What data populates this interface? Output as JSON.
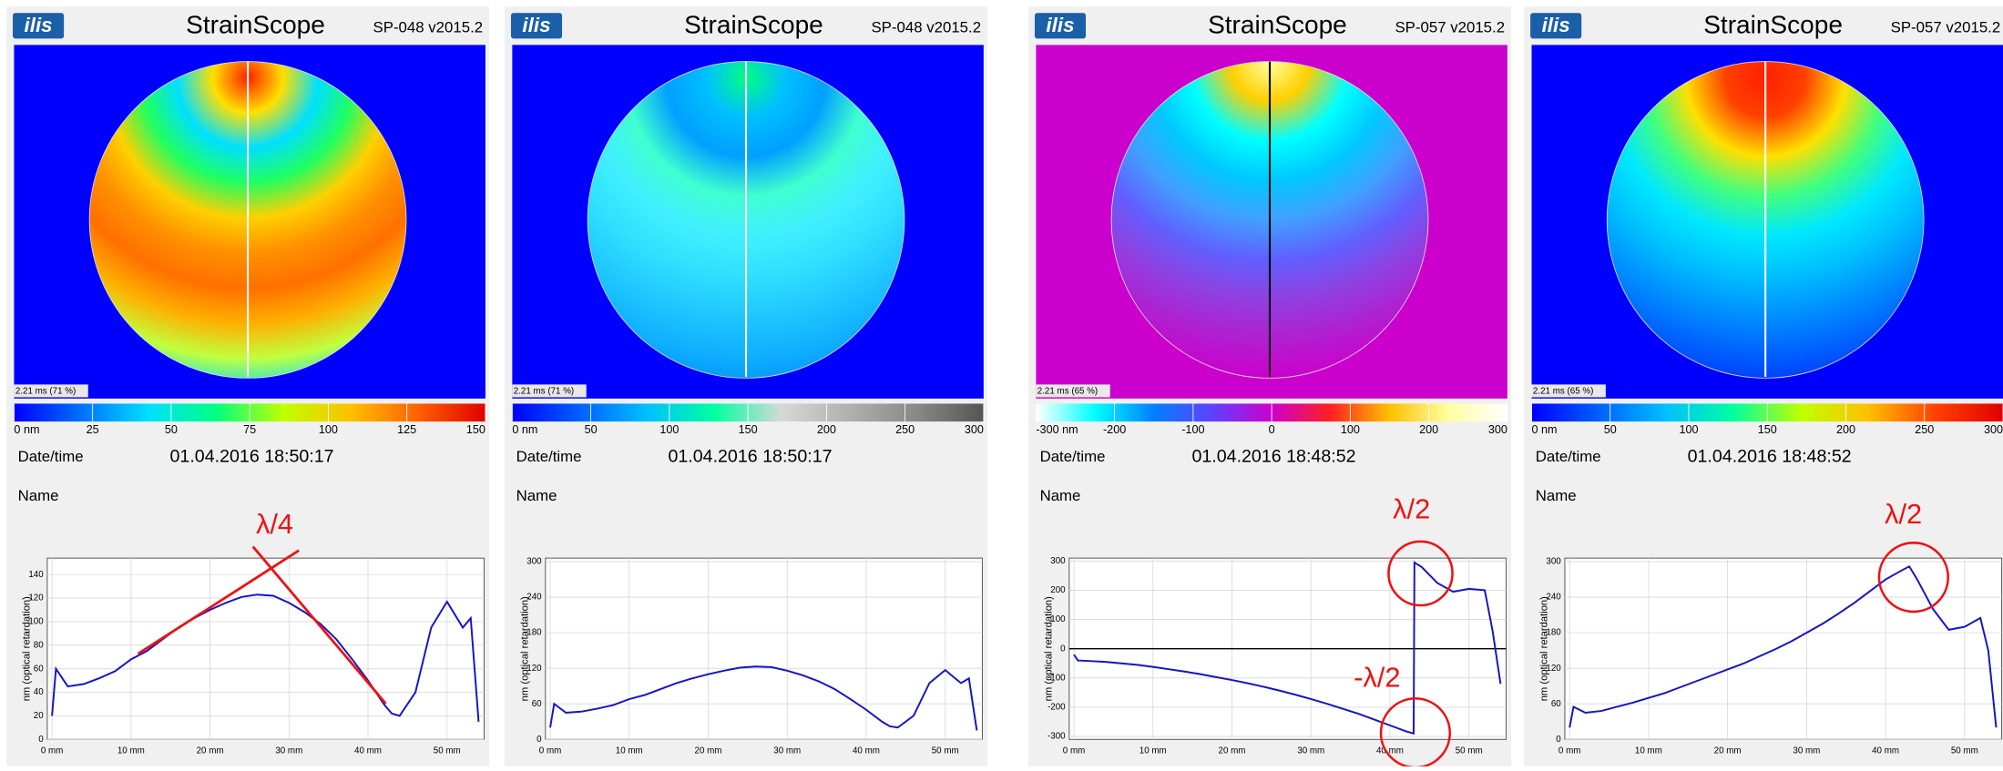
{
  "chart_data": [
    {
      "type": "line",
      "logo": "ilis",
      "app_title": "StrainScope",
      "version": "SP-048 v2015.2",
      "image_label": "2.21 ms (71 %)",
      "colorbar": {
        "lim": [
          0,
          150
        ],
        "ticks": [
          {
            "value": 0,
            "label": "0 nm"
          },
          25,
          50,
          75,
          100,
          125,
          150
        ],
        "colors": [
          "#0000ff",
          "#0070ff",
          "#00e0ff",
          "#00ff80",
          "#c0ff00",
          "#ffc000",
          "#ff6000",
          "#e00000"
        ]
      },
      "date_label": "Date/time",
      "date_value": "01.04.2016 18:50:17",
      "name_label": "Name",
      "ylabel": "nm (optical retardation)",
      "xlim": [
        -0.6,
        54.7
      ],
      "xticks": [
        {
          "value": 0,
          "label": "0 mm"
        },
        {
          "value": 10,
          "label": "10 mm"
        },
        {
          "value": 20,
          "label": "20 mm"
        },
        {
          "value": 30,
          "label": "30 mm"
        },
        {
          "value": 40,
          "label": "40 mm"
        },
        {
          "value": 50,
          "label": "50 mm"
        }
      ],
      "ylim": [
        0,
        154
      ],
      "yticks": [
        0,
        20,
        40,
        60,
        80,
        100,
        120,
        140
      ],
      "grid": true,
      "zero_line": false,
      "x": [
        0,
        0.5,
        2,
        4,
        6,
        8,
        10,
        12,
        14,
        16,
        18,
        20,
        22,
        24,
        26,
        28,
        30,
        32,
        34,
        36,
        38,
        40,
        42,
        43,
        44,
        46,
        48,
        50,
        52,
        53,
        54
      ],
      "series": [
        {
          "color": "#1414c8",
          "values": [
            20,
            60,
            45,
            47,
            52,
            58,
            68,
            75,
            85,
            95,
            103,
            110,
            116,
            121,
            123,
            122,
            116,
            108,
            98,
            85,
            68,
            50,
            30,
            22,
            20,
            40,
            95,
            117,
            95,
            103,
            15
          ]
        }
      ],
      "annotations": [
        "λ/4"
      ]
    },
    {
      "type": "line",
      "logo": "ilis",
      "app_title": "StrainScope",
      "version": "SP-048 v2015.2",
      "image_label": "2.21 ms (71 %)",
      "colorbar": {
        "lim": [
          0,
          300
        ],
        "ticks": [
          {
            "value": 0,
            "label": "0 nm"
          },
          50,
          100,
          150,
          200,
          250,
          300
        ],
        "colors": [
          "#0000ff",
          "#0060ff",
          "#00c0ff",
          "#00ffa0",
          "#d8d8d8",
          "#b0b0b0",
          "#888888",
          "#555555"
        ]
      },
      "date_label": "Date/time",
      "date_value": "01.04.2016 18:50:17",
      "name_label": "Name",
      "ylabel": "nm (optical retardation)",
      "xlim": [
        -0.6,
        54.7
      ],
      "xticks": [
        {
          "value": 0,
          "label": "0 mm"
        },
        {
          "value": 10,
          "label": "10 mm"
        },
        {
          "value": 20,
          "label": "20 mm"
        },
        {
          "value": 30,
          "label": "30 mm"
        },
        {
          "value": 40,
          "label": "40 mm"
        },
        {
          "value": 50,
          "label": "50 mm"
        }
      ],
      "ylim": [
        0,
        306
      ],
      "yticks": [
        0,
        60,
        120,
        180,
        240,
        300
      ],
      "grid": true,
      "zero_line": false,
      "x": [
        0,
        0.5,
        2,
        4,
        6,
        8,
        10,
        12,
        14,
        16,
        18,
        20,
        22,
        24,
        26,
        28,
        30,
        32,
        34,
        36,
        38,
        40,
        42,
        43,
        44,
        46,
        48,
        50,
        52,
        53,
        54
      ],
      "series": [
        {
          "color": "#1414c8",
          "values": [
            20,
            60,
            45,
            47,
            52,
            58,
            68,
            75,
            85,
            95,
            103,
            110,
            116,
            121,
            123,
            122,
            116,
            108,
            98,
            85,
            68,
            50,
            30,
            22,
            20,
            40,
            95,
            117,
            95,
            103,
            15
          ]
        }
      ],
      "annotations": []
    },
    {
      "type": "line",
      "logo": "ilis",
      "app_title": "StrainScope",
      "version": "SP-057 v2015.2",
      "image_label": "2.21 ms (65 %)",
      "colorbar": {
        "lim": [
          -300,
          300
        ],
        "ticks": [
          {
            "value": -300,
            "label": "-300 nm"
          },
          -200,
          -100,
          0,
          100,
          200,
          300
        ],
        "colors": [
          "#ffffff",
          "#00ffff",
          "#0080ff",
          "#6040ff",
          "#cc00cc",
          "#ff2020",
          "#ffc000",
          "#ffffa0",
          "#ffffff"
        ]
      },
      "date_label": "Date/time",
      "date_value": "01.04.2016 18:48:52",
      "name_label": "Name",
      "ylabel": "nm (optical retardation)",
      "xlim": [
        -0.6,
        54.7
      ],
      "xticks": [
        {
          "value": 0,
          "label": "0 mm"
        },
        {
          "value": 10,
          "label": "10 mm"
        },
        {
          "value": 20,
          "label": "20 mm"
        },
        {
          "value": 30,
          "label": "30 mm"
        },
        {
          "value": 40,
          "label": "40 mm"
        },
        {
          "value": 50,
          "label": "50 mm"
        }
      ],
      "ylim": [
        -310,
        310
      ],
      "yticks": [
        -300,
        -200,
        -100,
        0,
        100,
        200,
        300
      ],
      "grid": true,
      "zero_line": true,
      "x": [
        0,
        0.5,
        2,
        4,
        6,
        8,
        10,
        12,
        14,
        16,
        18,
        20,
        22,
        24,
        26,
        28,
        30,
        32,
        34,
        36,
        38,
        40,
        42,
        43,
        43.1,
        44,
        46,
        48,
        50,
        52,
        53,
        54
      ],
      "series": [
        {
          "color": "#1414c8",
          "values": [
            -20,
            -40,
            -42,
            -45,
            -50,
            -55,
            -62,
            -70,
            -78,
            -87,
            -97,
            -107,
            -118,
            -130,
            -143,
            -157,
            -172,
            -188,
            -205,
            -222,
            -242,
            -262,
            -282,
            -290,
            295,
            280,
            225,
            195,
            205,
            200,
            60,
            -120
          ]
        }
      ],
      "annotations": [
        "λ/2",
        "-λ/2"
      ]
    },
    {
      "type": "line",
      "logo": "ilis",
      "app_title": "StrainScope",
      "version": "SP-057 v2015.2",
      "image_label": "2.21 ms (65 %)",
      "colorbar": {
        "lim": [
          0,
          300
        ],
        "ticks": [
          {
            "value": 0,
            "label": "0 nm"
          },
          50,
          100,
          150,
          200,
          250,
          300
        ],
        "colors": [
          "#0000ff",
          "#0060ff",
          "#00c0ff",
          "#00ffa0",
          "#c0ff00",
          "#ffc000",
          "#ff4000",
          "#e00000"
        ]
      },
      "date_label": "Date/time",
      "date_value": "01.04.2016 18:48:52",
      "name_label": "Name",
      "ylabel": "nm (optical retardation)",
      "xlim": [
        -0.6,
        54.7
      ],
      "xticks": [
        {
          "value": 0,
          "label": "0 mm"
        },
        {
          "value": 10,
          "label": "10 mm"
        },
        {
          "value": 20,
          "label": "20 mm"
        },
        {
          "value": 30,
          "label": "30 mm"
        },
        {
          "value": 40,
          "label": "40 mm"
        },
        {
          "value": 50,
          "label": "50 mm"
        }
      ],
      "ylim": [
        0,
        306
      ],
      "yticks": [
        0,
        60,
        120,
        180,
        240,
        300
      ],
      "grid": true,
      "zero_line": false,
      "x": [
        0,
        0.5,
        2,
        4,
        6,
        8,
        10,
        12,
        14,
        16,
        18,
        20,
        22,
        24,
        26,
        28,
        30,
        32,
        34,
        36,
        38,
        40,
        42,
        43,
        44,
        46,
        48,
        50,
        52,
        53,
        54
      ],
      "series": [
        {
          "color": "#1414c8",
          "values": [
            20,
            55,
            45,
            48,
            55,
            62,
            70,
            78,
            88,
            98,
            108,
            118,
            128,
            140,
            152,
            165,
            180,
            195,
            212,
            230,
            250,
            270,
            285,
            292,
            270,
            220,
            185,
            190,
            205,
            150,
            20
          ]
        }
      ],
      "annotations": [
        "λ/2"
      ]
    }
  ]
}
